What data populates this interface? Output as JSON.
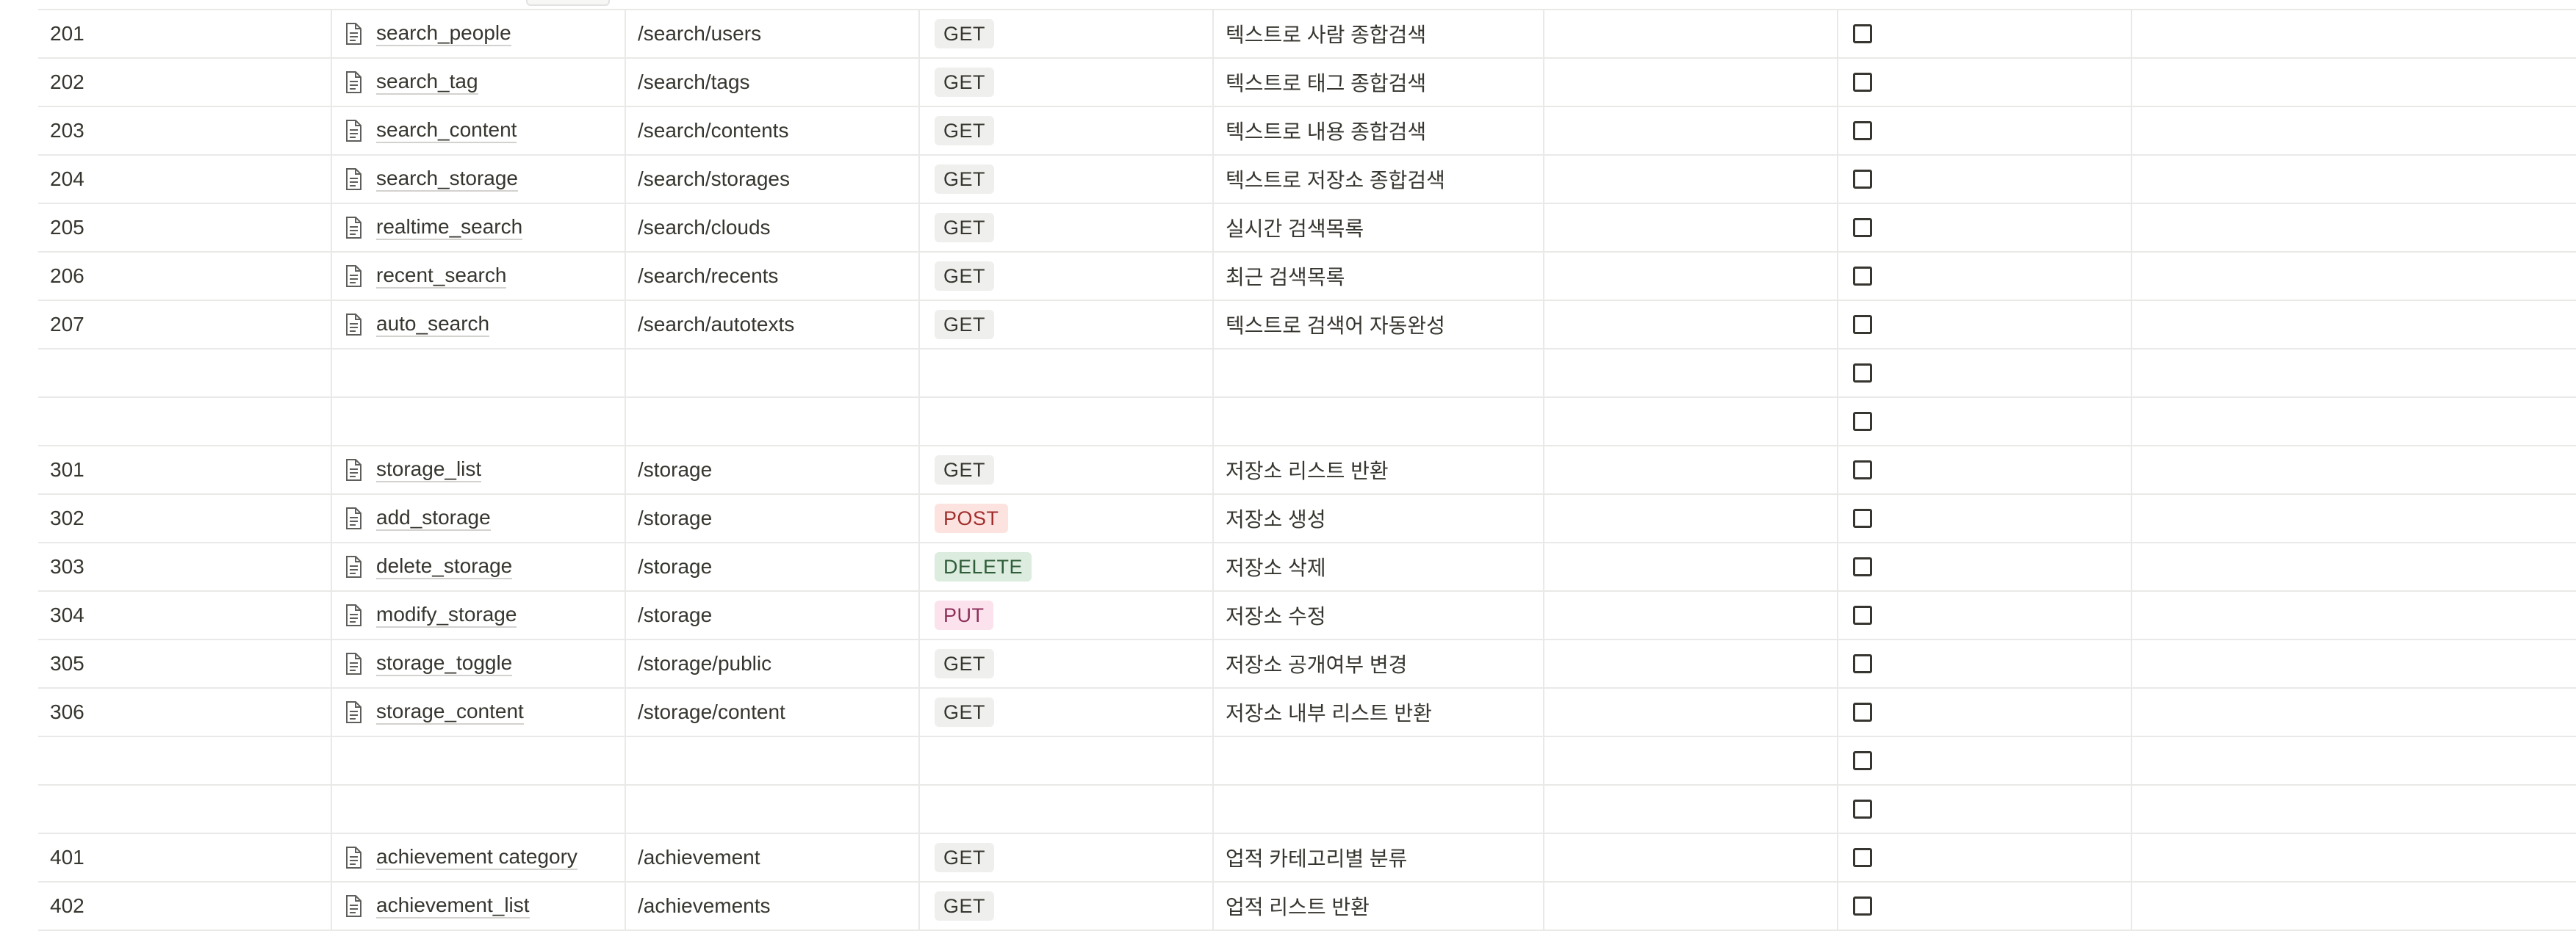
{
  "table": {
    "rows": [
      {
        "num": "201",
        "name": "search_people",
        "uri": "/search/users",
        "method": "GET",
        "method_kind": "get",
        "desc": "텍스트로 사람 종합검색"
      },
      {
        "num": "202",
        "name": "search_tag",
        "uri": "/search/tags",
        "method": "GET",
        "method_kind": "get",
        "desc": "텍스트로 태그 종합검색"
      },
      {
        "num": "203",
        "name": "search_content",
        "uri": "/search/contents",
        "method": "GET",
        "method_kind": "get",
        "desc": "텍스트로 내용 종합검색"
      },
      {
        "num": "204",
        "name": "search_storage",
        "uri": "/search/storages",
        "method": "GET",
        "method_kind": "get",
        "desc": "텍스트로 저장소 종합검색"
      },
      {
        "num": "205",
        "name": "realtime_search",
        "uri": "/search/clouds",
        "method": "GET",
        "method_kind": "get",
        "desc": "실시간 검색목록"
      },
      {
        "num": "206",
        "name": "recent_search",
        "uri": "/search/recents",
        "method": "GET",
        "method_kind": "get",
        "desc": "최근 검색목록"
      },
      {
        "num": "207",
        "name": "auto_search",
        "uri": "/search/autotexts",
        "method": "GET",
        "method_kind": "get",
        "desc": "텍스트로 검색어 자동완성"
      },
      {
        "num": "",
        "name": "",
        "uri": "",
        "method": "",
        "method_kind": "",
        "desc": ""
      },
      {
        "num": "",
        "name": "",
        "uri": "",
        "method": "",
        "method_kind": "",
        "desc": ""
      },
      {
        "num": "301",
        "name": "storage_list",
        "uri": "/storage",
        "method": "GET",
        "method_kind": "get",
        "desc": "저장소 리스트 반환"
      },
      {
        "num": "302",
        "name": "add_storage",
        "uri": "/storage",
        "method": "POST",
        "method_kind": "post",
        "desc": "저장소 생성"
      },
      {
        "num": "303",
        "name": "delete_storage",
        "uri": "/storage",
        "method": "DELETE",
        "method_kind": "delete",
        "desc": "저장소 삭제"
      },
      {
        "num": "304",
        "name": "modify_storage",
        "uri": "/storage",
        "method": "PUT",
        "method_kind": "put",
        "desc": "저장소 수정"
      },
      {
        "num": "305",
        "name": "storage_toggle",
        "uri": "/storage/public",
        "method": "GET",
        "method_kind": "get",
        "desc": "저장소 공개여부 변경"
      },
      {
        "num": "306",
        "name": "storage_content",
        "uri": "/storage/content",
        "method": "GET",
        "method_kind": "get",
        "desc": "저장소 내부 리스트 반환"
      },
      {
        "num": "",
        "name": "",
        "uri": "",
        "method": "",
        "method_kind": "",
        "desc": ""
      },
      {
        "num": "",
        "name": "",
        "uri": "",
        "method": "",
        "method_kind": "",
        "desc": ""
      },
      {
        "num": "401",
        "name": "achievement category",
        "uri": "/achievement",
        "method": "GET",
        "method_kind": "get",
        "desc": "업적 카테고리별 분류"
      },
      {
        "num": "402",
        "name": "achievement_list",
        "uri": "/achievements",
        "method": "GET",
        "method_kind": "get",
        "desc": "업적 리스트 반환"
      }
    ]
  },
  "icons": {
    "page": "page-document-icon",
    "checkbox": "checkbox-unchecked"
  }
}
